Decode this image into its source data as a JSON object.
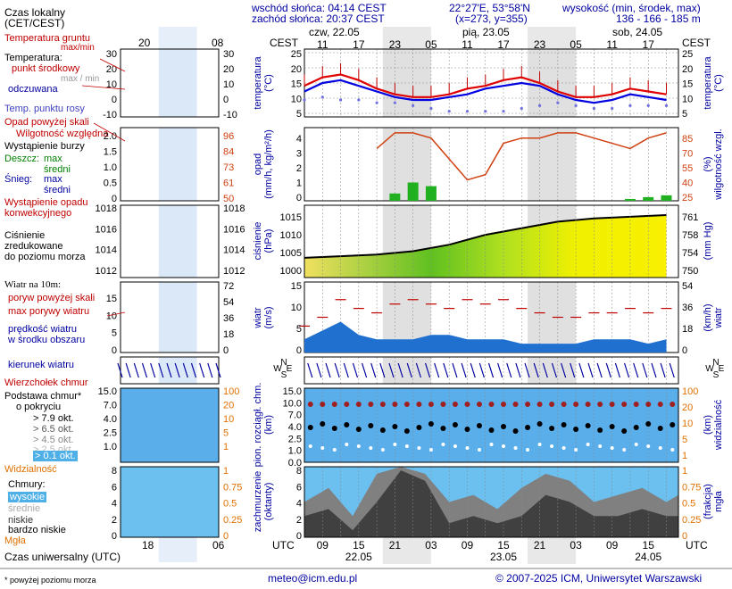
{
  "header": {
    "sunrise": "wschód słońca: 04:14 CEST",
    "sunset": "zachód słońca: 20:37 CEST",
    "coords": "22°27'E, 53°58'N",
    "grid": "(x=273, y=355)",
    "elev_title": "wysokość (min, środek, max)",
    "elev_values": "136 - 166 - 185 m",
    "days": [
      "czw, 22.05",
      "pią, 23.05",
      "sob, 24.05"
    ],
    "cest_hours": [
      "11",
      "17",
      "23",
      "05",
      "11",
      "17",
      "23",
      "05",
      "11",
      "17"
    ],
    "cest_label": "CEST",
    "utc_hours": [
      "09",
      "15",
      "21",
      "03",
      "09",
      "15",
      "21",
      "03",
      "09",
      "15"
    ],
    "utc_dates": [
      "22.05",
      "23.05",
      "24.05"
    ],
    "utc_label": "UTC"
  },
  "legend": {
    "local_time": "Czas lokalny",
    "local_time2": "(CET/CEST)",
    "local_hours": [
      "20",
      "02",
      "08"
    ],
    "ground_temp": "Temperatura gruntu",
    "maxmin": "max/min",
    "temperature": "Temperatura:",
    "mid_point": "punkt środkowy",
    "max_min": "max / min",
    "perceived": "odczuwana",
    "dew_point": "Temp. punktu rosy",
    "temp_ticks": [
      "30",
      "20",
      "10",
      "0",
      "-10"
    ],
    "rain_above": "Opad powyżej skali",
    "humidity": "Wilgotność względna",
    "storm": "Wystąpienie burzy",
    "rain": "Deszcz:",
    "max": "max",
    "mean": "średni",
    "snow": "Śnieg:",
    "convective": "Wystąpienie opadu",
    "convective2": "konwekcyjnego",
    "rain_ticks": [
      "2.0",
      "1.5",
      "1.0",
      "0.5",
      "0"
    ],
    "hum_ticks": [
      "96",
      "84",
      "73",
      "61",
      "50"
    ],
    "pressure": "Ciśnienie",
    "pressure2": "zredukowane",
    "pressure3": "do poziomu morza",
    "press_ticks": [
      "1018",
      "1016",
      "1014",
      "1012"
    ],
    "wind10": "Wiatr na 10m:",
    "gust_above": "poryw powyżej skali",
    "gust_max": "max porywy wiatru",
    "wind_speed": "prędkość wiatru",
    "wind_speed2": "w środku obszaru",
    "wind_ticks": [
      "15",
      "10",
      "5",
      "0"
    ],
    "wind_ticks_r": [
      "72",
      "54",
      "36",
      "18",
      "0"
    ],
    "wind_dir": "kierunek wiatru",
    "windchill": "Wierzchołek chmur",
    "cloud_base": "Podstawa chmur*",
    "cloud_base2": "o pokryciu",
    "okt": [
      "> 7.9 okt.",
      "> 6.5 okt.",
      "> 4.5 okt.",
      "> 2.5 okt.",
      "> 0.1 okt."
    ],
    "base_ticks": [
      "15.0",
      "7.0",
      "4.0",
      "2.5",
      "1.0"
    ],
    "vis_ticks": [
      "100",
      "20",
      "10",
      "5",
      "1"
    ],
    "visibility": "Widzialność",
    "clouds": "Chmury:",
    "high": "wysokie",
    "mid": "średnie",
    "low": "niskie",
    "very_low": "bardzo niskie",
    "fog": "Mgła",
    "cloud_ticks": [
      "8",
      "6",
      "4",
      "2",
      "0"
    ],
    "fog_ticks": [
      "1",
      "0.75",
      "0.5",
      "0.25",
      "0"
    ],
    "utc": "Czas uniwersalny (UTC)",
    "utc_hours": [
      "18",
      "00",
      "06"
    ],
    "footnote": "* powyżej poziomu morza"
  },
  "axes": {
    "temp_left": [
      "25",
      "20",
      "15",
      "10",
      "5"
    ],
    "temp_right": [
      "25",
      "20",
      "15",
      "10",
      "5"
    ],
    "temp_label": "temperatura",
    "temp_unit": "(°C)",
    "rain_left": [
      "4",
      "3",
      "2",
      "1",
      "0"
    ],
    "rain_right": [
      "85",
      "70",
      "55",
      "40",
      "25"
    ],
    "rain_label": "opad",
    "rain_unit": "(mm/h, kg/m²/h)",
    "hum_label": "wilgotność wzgl.",
    "hum_unit": "(%)",
    "press_left": [
      "1015",
      "1010",
      "1005",
      "1000"
    ],
    "press_right": [
      "761",
      "758",
      "754",
      "750"
    ],
    "press_label": "ciśnienie",
    "press_unit": "(hPa)",
    "press_unit_r": "(mm Hg)",
    "wind_left": [
      "15",
      "10",
      "5",
      "0"
    ],
    "wind_right": [
      "54",
      "36",
      "18",
      "0"
    ],
    "wind_label": "wiatr",
    "wind_unit": "(m/s)",
    "wind_unit_r": "(km/h)",
    "base_left": [
      "15.0",
      "10.0",
      "7.0",
      "4.0",
      "2.5",
      "1.0",
      "0.0"
    ],
    "base_right": [
      "100",
      "20",
      "10",
      "5",
      "1"
    ],
    "base_label": "pion. rozciągł. chm.",
    "base_unit": "(km)",
    "vis_label": "widzialność",
    "vis_unit": "(km)",
    "cloud_left": [
      "8",
      "6",
      "4",
      "2",
      "0"
    ],
    "cloud_right": [
      "1",
      "0.75",
      "0.5",
      "0.25",
      "0"
    ],
    "cloud_label": "zachmurzenie",
    "cloud_unit": "(oktanty)",
    "fog_label": "mgła",
    "fog_unit": "(frakcja)",
    "compass": [
      "N",
      "W",
      "E",
      "S"
    ]
  },
  "footer": {
    "email": "meteo@icm.edu.pl",
    "copyright": "© 2007-2025 ICM, Uniwersytet Warszawski"
  },
  "colors": {
    "red": "#c00000",
    "blue": "#0000a0",
    "green": "#008000",
    "orange": "#e07000",
    "night": "#e0e0e0"
  },
  "chart_data": [
    {
      "type": "line",
      "title": "temperatura (°C)",
      "x_utc_hours": [
        6,
        9,
        12,
        15,
        18,
        21,
        24,
        27,
        30,
        33,
        36,
        39,
        42,
        45,
        48,
        51,
        54,
        57,
        60,
        63,
        66
      ],
      "series": [
        {
          "name": "punkt środkowy",
          "values": [
            14,
            17,
            18,
            16,
            13,
            11,
            10,
            10,
            11,
            13,
            14,
            16,
            17,
            15,
            12,
            10,
            10,
            11,
            13,
            12,
            11
          ]
        },
        {
          "name": "odczuwana",
          "values": [
            12,
            15,
            16,
            14,
            12,
            10,
            9,
            9,
            10,
            11,
            13,
            14,
            15,
            14,
            11,
            9,
            8,
            9,
            11,
            10,
            9
          ]
        },
        {
          "name": "Temp. punktu rosy",
          "values": [
            9,
            10,
            9,
            9,
            8,
            8,
            7,
            6,
            5,
            5,
            5,
            5,
            6,
            7,
            8,
            7,
            6,
            6,
            7,
            7,
            7
          ]
        }
      ],
      "ylim": [
        3,
        27
      ]
    },
    {
      "type": "bar",
      "title": "opad (mm/h, kg/m²/h)",
      "x_utc_hours": [
        18,
        21,
        24,
        27,
        30,
        33,
        36,
        39,
        42,
        45,
        48,
        51,
        54,
        57,
        60,
        63,
        66
      ],
      "series": [
        {
          "name": "opad średni",
          "values": [
            0,
            0.4,
            1.0,
            0.8,
            0,
            0,
            0,
            0,
            0,
            0,
            0,
            0,
            0,
            0,
            0.1,
            0.2,
            0.3
          ]
        },
        {
          "name": "wilgotność względna",
          "values": [
            70,
            85,
            85,
            80,
            60,
            40,
            45,
            75,
            80,
            80,
            85,
            85,
            80,
            75,
            70,
            80,
            85
          ]
        }
      ],
      "ylim": [
        0,
        4
      ]
    },
    {
      "type": "area",
      "title": "ciśnienie (hPa)",
      "x_utc_hours": [
        6,
        12,
        18,
        24,
        30,
        36,
        42,
        48,
        54,
        60,
        66
      ],
      "values": [
        1003,
        1003.5,
        1004,
        1005,
        1007,
        1010,
        1012,
        1014,
        1015,
        1015.5,
        1016
      ],
      "ylim": [
        997,
        1019
      ]
    },
    {
      "type": "area",
      "title": "wiatr (m/s)",
      "x_utc_hours": [
        6,
        9,
        12,
        15,
        18,
        21,
        24,
        27,
        30,
        33,
        36,
        39,
        42,
        45,
        48,
        51,
        54,
        57,
        60,
        63,
        66
      ],
      "series": [
        {
          "name": "prędkość wiatru",
          "values": [
            3,
            5,
            7,
            4,
            3,
            3,
            3,
            4,
            4,
            3,
            3,
            3,
            2,
            2,
            2,
            2,
            3,
            3,
            3,
            2,
            3
          ]
        },
        {
          "name": "max porywy wiatru",
          "values": [
            6,
            8,
            12,
            10,
            9,
            11,
            12,
            11,
            10,
            12,
            11,
            12,
            10,
            9,
            8,
            8,
            9,
            9,
            10,
            9,
            10
          ]
        }
      ],
      "ylim": [
        0,
        16
      ]
    }
  ]
}
